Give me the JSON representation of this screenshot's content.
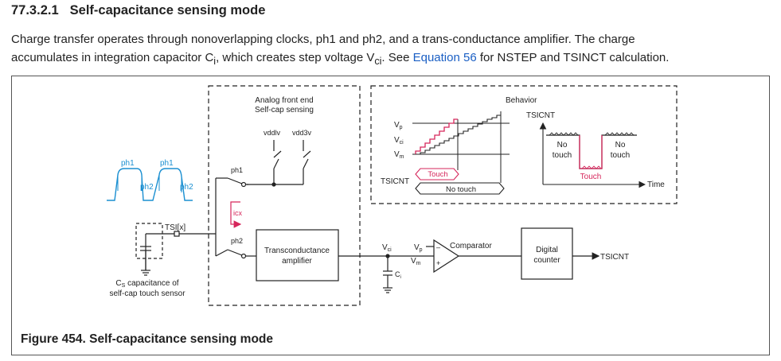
{
  "section": {
    "number": "77.3.2.1",
    "title": "Self-capacitance sensing mode"
  },
  "paragraph": {
    "line1": "Charge transfer operates through nonoverlapping clocks, ph1 and ph2, and a trans-conductance amplifier. The charge",
    "line2_pre": "accumulates in integration capacitor C",
    "line2_sub_i": "i",
    "line2_mid": ", which creates step voltage V",
    "line2_sub_ci": "ci",
    "line2_see": ". See ",
    "link": "Equation 56",
    "line2_post": " for NSTEP and TSINCT calculation."
  },
  "diagram": {
    "afe_title_1": "Analog front end",
    "afe_title_2": "Self-cap sensing",
    "vddlv": "vddlv",
    "vdd3v": "vdd3v",
    "ph1": "ph1",
    "ph2": "ph2",
    "icx": "icx",
    "tsi": "TSI[x]",
    "cs_label_main": "C",
    "cs_label_sub": "S",
    "cs_label_rest": " capacitance of",
    "cs_label_2": "self-cap touch sensor",
    "transconductance_1": "Transconductance",
    "transconductance_2": "amplifier",
    "vci_main": "V",
    "vci_sub": "ci",
    "vp_main": "V",
    "vp_sub": "p",
    "vm_main": "V",
    "vm_sub": "m",
    "ci_main": "C",
    "ci_sub": "i",
    "comparator": "Comparator",
    "digital_1": "Digital",
    "digital_2": "counter",
    "tsicnt": "TSICNT",
    "behavior": "Behavior",
    "touch": "Touch",
    "no_touch": "No touch",
    "no": "No",
    "touch_lower": "touch",
    "time": "Time",
    "minus": "–",
    "plus": "+"
  },
  "caption": "Figure 454. Self-capacitance sensing mode",
  "colors": {
    "accent_blue": "#1a8fd1",
    "accent_red": "#d6265b",
    "link_blue": "#1a5fc4"
  }
}
